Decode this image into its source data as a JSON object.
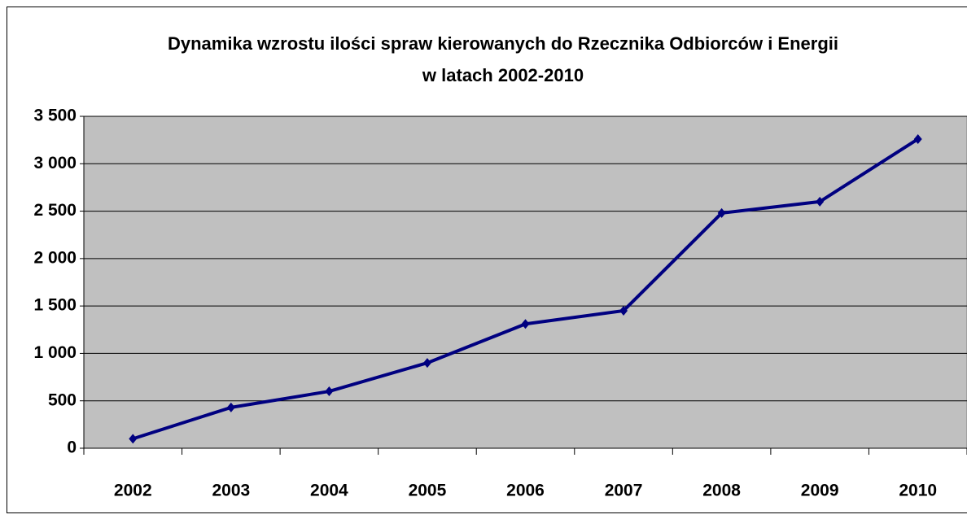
{
  "chart_data": {
    "type": "line",
    "title": [
      "Dynamika wzrostu ilości spraw kierowanych do Rzecznika Odbiorców i Energii",
      "w latach 2002-2010"
    ],
    "categories": [
      "2002",
      "2003",
      "2004",
      "2005",
      "2006",
      "2007",
      "2008",
      "2009",
      "2010"
    ],
    "series": [
      {
        "color": "#000080",
        "values": [
          100,
          430,
          600,
          900,
          1310,
          1450,
          2480,
          2600,
          3260
        ]
      }
    ],
    "ylim": [
      0,
      3500
    ],
    "yticks": [
      0,
      500,
      {
        "value": 1000,
        "label": "1 000"
      },
      {
        "value": 1500,
        "label": "1 500"
      },
      {
        "value": 2000,
        "label": "2 000"
      },
      {
        "value": 2500,
        "label": "2 500"
      },
      {
        "value": 3000,
        "label": "3 000"
      },
      {
        "value": 3500,
        "label": "3 500"
      }
    ],
    "grid": true,
    "plot_background": "#c0c0c0"
  }
}
